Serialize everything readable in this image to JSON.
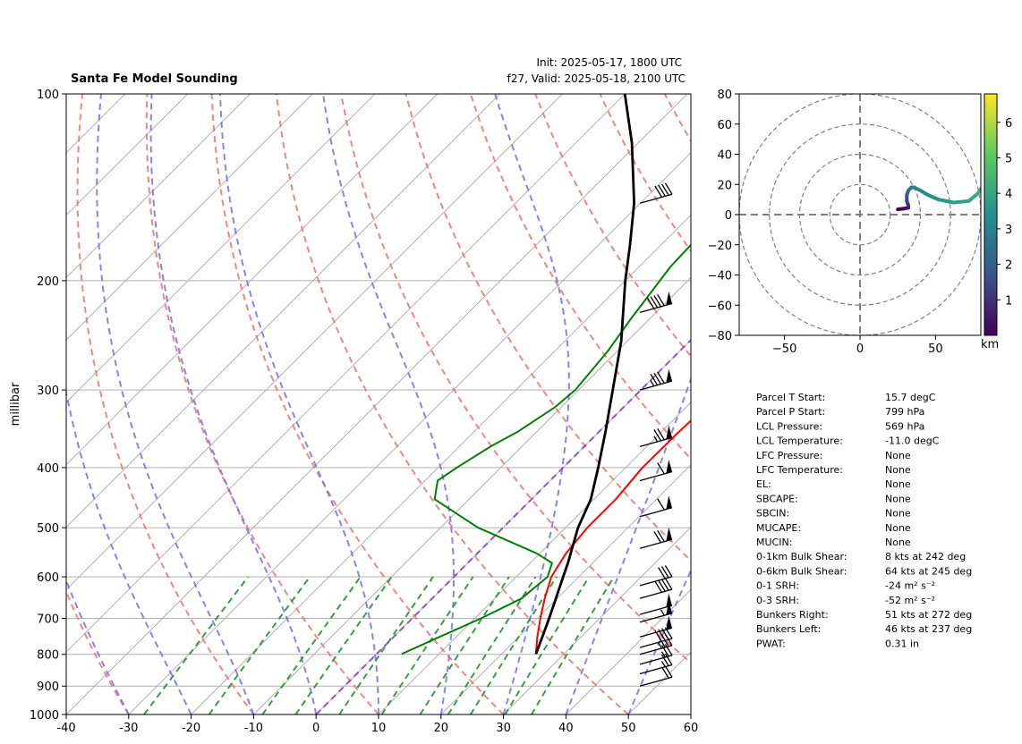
{
  "header": {
    "title": "Santa Fe Model Sounding",
    "init": "Init: 2025-05-17, 1800 UTC",
    "valid": "f27, Valid: 2025-05-18, 2100 UTC"
  },
  "chart_data": [
    {
      "type": "line",
      "subtype": "skew-t log-p",
      "ylabel": "millibar",
      "xlabel": "",
      "xlim": [
        -40,
        60
      ],
      "ylim": [
        1000,
        100
      ],
      "y_scale": "log",
      "x_ticks": [
        -40,
        -30,
        -20,
        -10,
        0,
        10,
        20,
        30,
        40,
        50,
        60
      ],
      "y_ticks": [
        100,
        200,
        300,
        400,
        500,
        600,
        700,
        800,
        900,
        1000
      ],
      "y_tick_labels": [
        "100",
        "200",
        "300",
        "400",
        "500",
        "600",
        "700",
        "800",
        "900",
        "1000"
      ],
      "grid": true,
      "colors": {
        "temperature": "#ff0000",
        "dewpoint": "#008000",
        "parcel": "#000000",
        "dry_adiabat": "#f07070",
        "moist_adiabat": "#7070f0",
        "mixing_ratio": "#22922f",
        "isotherm_0": "#8b44c8"
      },
      "series": [
        {
          "p": [
            799,
            750,
            700,
            650,
            600,
            550,
            500,
            450,
            400,
            350,
            300,
            250,
            220,
            200,
            150,
            135,
            100
          ],
          "t": [
            25.5,
            23,
            20.5,
            18,
            15.6,
            14.2,
            13.5,
            13.5,
            12.7,
            12.8,
            13.3,
            14,
            15.8,
            19,
            32,
            39,
            52
          ]
        },
        {
          "p": [
            799,
            750,
            700,
            650,
            600,
            570,
            550,
            500,
            450,
            420,
            400,
            370,
            350,
            320,
            300,
            260,
            230,
            190,
            160,
            135,
            120,
            100
          ],
          "t": [
            4,
            7.3,
            11,
            14.3,
            15,
            13.5,
            9.5,
            -4,
            -15.5,
            -18,
            -17,
            -15,
            -13,
            -11,
            -10.5,
            -11.5,
            -13,
            -15,
            -15.5,
            -16,
            -16.5,
            -15
          ]
        },
        {
          "p": [
            799,
            750,
            700,
            650,
            600,
            569,
            500,
            450,
            400,
            350,
            300,
            250,
            200,
            175,
            150,
            120,
            100
          ],
          "t": [
            25.5,
            23.8,
            21.9,
            19.8,
            17.5,
            16,
            12,
            9.5,
            5.6,
            1,
            -4.5,
            -11,
            -20,
            -25,
            -31,
            -41,
            -50
          ]
        }
      ]
    },
    {
      "type": "scatter",
      "subtype": "hodograph",
      "xlim": [
        -80,
        80
      ],
      "ylim": [
        -80,
        80
      ],
      "x_ticks": [
        -50,
        0,
        50
      ],
      "y_ticks": [
        80,
        60,
        40,
        20,
        0,
        -20,
        -40,
        -60,
        -80
      ],
      "y_tick_labels": [
        "80",
        "60",
        "40",
        "20",
        "0",
        "−20",
        "−40",
        "−60",
        "−80"
      ],
      "x_tick_labels": [
        "−50",
        "0",
        "50"
      ],
      "rings": [
        20,
        40,
        60,
        80
      ],
      "colorbar": {
        "label": "km",
        "ticks": [
          "1",
          "2",
          "3",
          "4",
          "5",
          "6"
        ],
        "tick_values": [
          1,
          2,
          3,
          4,
          5,
          6
        ],
        "range": [
          0,
          6.8
        ],
        "colormap": "viridis"
      },
      "x": [
        25,
        29,
        32,
        32,
        31,
        31,
        32,
        34,
        36,
        40,
        45,
        52,
        62,
        72,
        78,
        82
      ],
      "y": [
        3.5,
        4,
        4.5,
        6,
        9,
        13,
        16,
        18,
        18,
        16,
        13,
        10,
        8,
        9,
        14,
        20
      ],
      "height_km": [
        0,
        0.3,
        0.6,
        1,
        1.5,
        2,
        2.5,
        2.8,
        3,
        3.2,
        3.4,
        3.6,
        3.8,
        4,
        4.2,
        4.5
      ]
    }
  ],
  "stats": [
    {
      "label": "Parcel T Start:",
      "value": "15.7 degC"
    },
    {
      "label": "Parcel P Start:",
      "value": "799 hPa"
    },
    {
      "label": "LCL Pressure:",
      "value": "569 hPa"
    },
    {
      "label": "LCL Temperature:",
      "value": "-11.0 degC"
    },
    {
      "label": "LFC Pressure:",
      "value": "None"
    },
    {
      "label": "LFC Temperature:",
      "value": "None"
    },
    {
      "label": "EL:",
      "value": "None"
    },
    {
      "label": "SBCAPE:",
      "value": "None"
    },
    {
      "label": "SBCIN:",
      "value": "None"
    },
    {
      "label": "MUCAPE:",
      "value": "None"
    },
    {
      "label": "MUCIN:",
      "value": "None"
    },
    {
      "label": "0-1km Bulk Shear:",
      "value": "8 kts at 242 deg"
    },
    {
      "label": "0-6km Bulk Shear:",
      "value": "64 kts at 245 deg"
    },
    {
      "label": "0-1 SRH:",
      "value": "-24 m² s⁻²"
    },
    {
      "label": "0-3 SRH:",
      "value": "-52 m² s⁻²"
    },
    {
      "label": "Bunkers Right:",
      "value": "51 kts at 272 deg"
    },
    {
      "label": "Bunkers Left:",
      "value": "46 kts at 237 deg"
    },
    {
      "label": "PWAT:",
      "value": "0.31 in"
    }
  ],
  "wind_barbs": [
    {
      "p": 900,
      "speed_kt": 20
    },
    {
      "p": 860,
      "speed_kt": 25
    },
    {
      "p": 830,
      "speed_kt": 25
    },
    {
      "p": 800,
      "speed_kt": 35
    },
    {
      "p": 780,
      "speed_kt": 40
    },
    {
      "p": 750,
      "speed_kt": 50
    },
    {
      "p": 710,
      "speed_kt": 55
    },
    {
      "p": 690,
      "speed_kt": 50
    },
    {
      "p": 650,
      "speed_kt": 40
    },
    {
      "p": 620,
      "speed_kt": 30
    },
    {
      "p": 540,
      "speed_kt": 70
    },
    {
      "p": 480,
      "speed_kt": 60
    },
    {
      "p": 420,
      "speed_kt": 60
    },
    {
      "p": 370,
      "speed_kt": 75
    },
    {
      "p": 300,
      "speed_kt": 85
    },
    {
      "p": 225,
      "speed_kt": 90
    },
    {
      "p": 150,
      "speed_kt": 40
    }
  ]
}
